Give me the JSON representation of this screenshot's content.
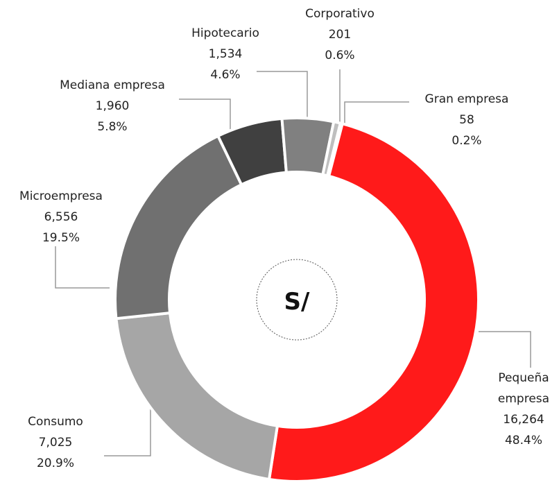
{
  "chart_data": {
    "type": "donut",
    "center_label": "S/",
    "categories": [
      "Pequeña empresa",
      "Consumo",
      "Microempresa",
      "Mediana empresa",
      "Hipotecario",
      "Corporativo",
      "Gran empresa"
    ],
    "values": [
      16264,
      7025,
      6556,
      1960,
      1534,
      201,
      58
    ],
    "value_labels": [
      "16,264",
      "7,025",
      "6,556",
      "1,960",
      "1,534",
      "201",
      "58"
    ],
    "percentages": [
      48.4,
      20.9,
      19.5,
      5.8,
      4.6,
      0.6,
      0.2
    ],
    "percentage_labels": [
      "48.4%",
      "20.9%",
      "19.5%",
      "5.8%",
      "4.6%",
      "0.6%",
      "0.2%"
    ],
    "colors": [
      "#ff1a1a",
      "#a6a6a6",
      "#707070",
      "#404040",
      "#808080",
      "#bfbfbf",
      "#d9d9d9"
    ]
  }
}
